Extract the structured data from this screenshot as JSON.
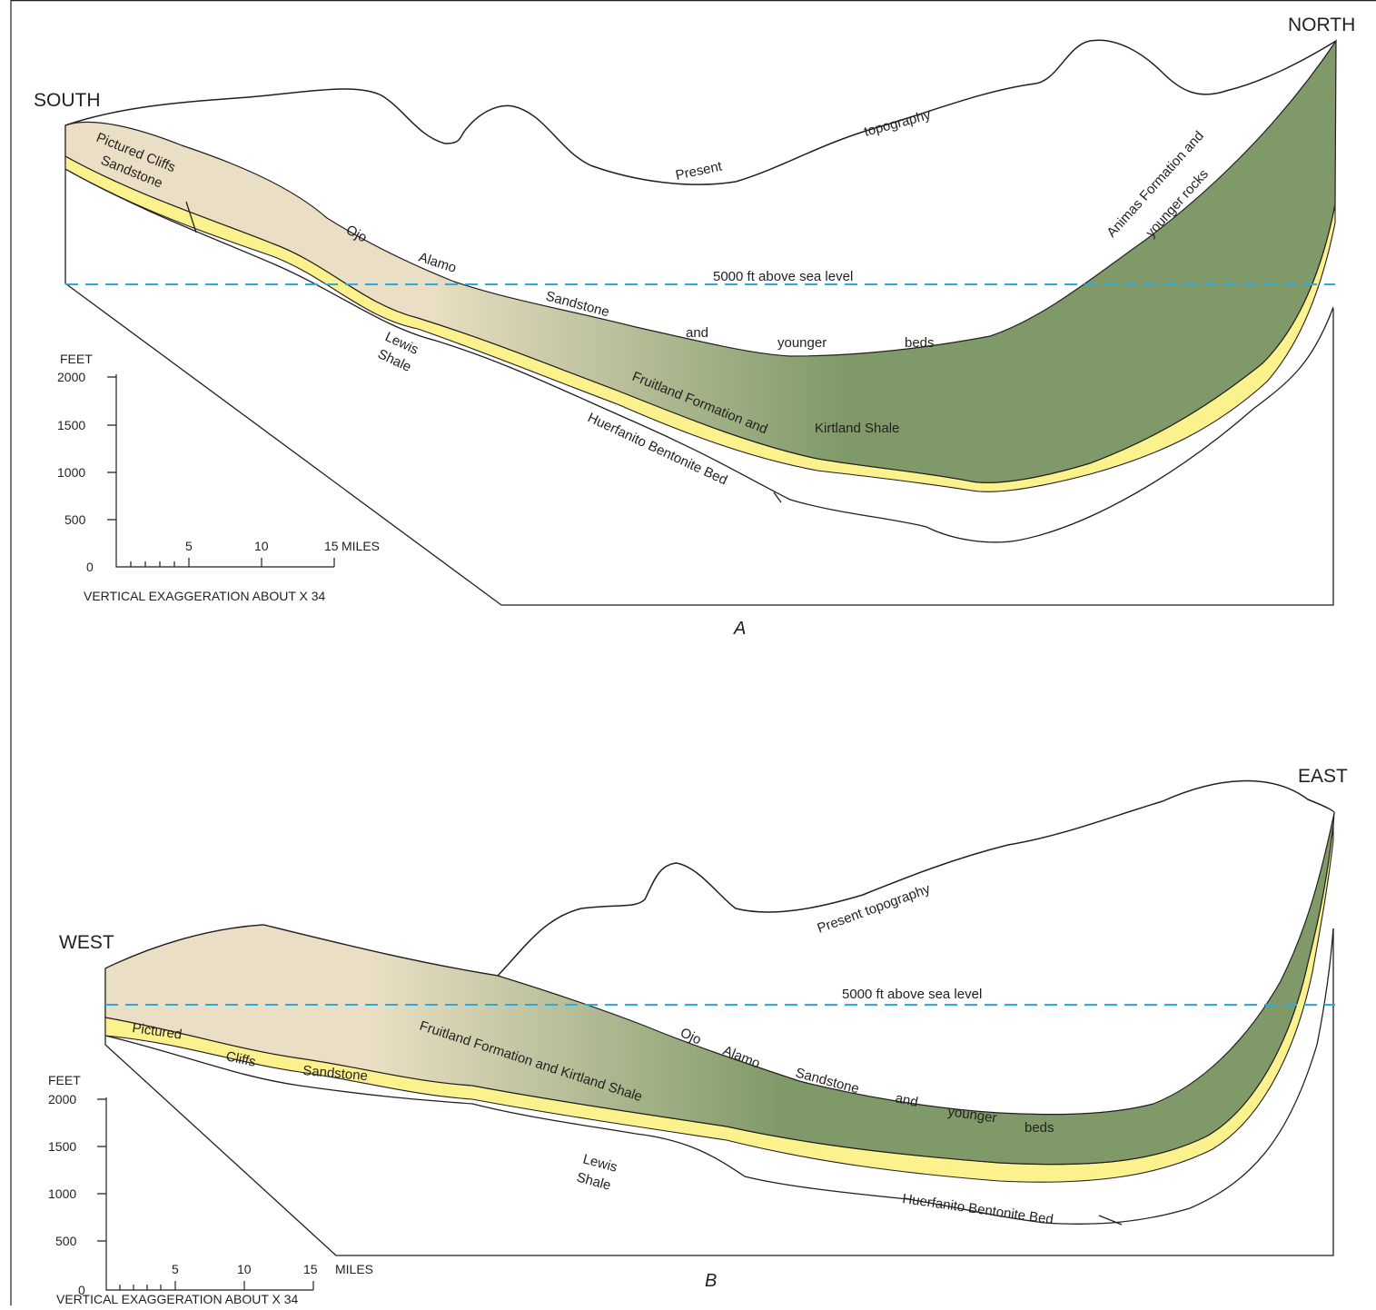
{
  "colors": {
    "ojo_alamo_sandstone": "#eadfc4",
    "animas_formation": "#7f9a68",
    "pictured_cliffs_sandstone": "#fbf28e",
    "orange_layer": "#f1c98d",
    "sea_level_line": "#29abe2",
    "outline": "#231f20"
  },
  "section_a": {
    "caption": "A",
    "left_direction": "SOUTH",
    "right_direction": "NORTH",
    "sea_level_label": "5000 ft above sea level",
    "topography_words": [
      "Present",
      "topography"
    ],
    "ojo_alamo_words": [
      "Ojo",
      "Alamo",
      "Sandstone",
      "and",
      "younger",
      "beds"
    ],
    "animas_label": [
      "Animas Formation and",
      "younger rocks"
    ],
    "pictured_cliffs_label": [
      "Pictured Cliffs",
      "Sandstone"
    ],
    "lewis_shale_label": [
      "Lewis",
      "Shale"
    ],
    "fruitland_label": "Fruitland Formation and",
    "kirtland_label": "Kirtland Shale",
    "huerfanito_label": "Huerfanito Bentonite Bed",
    "scale": {
      "vertical_unit": "FEET",
      "vertical_ticks": [
        "2000",
        "1500",
        "1000",
        "500",
        "0"
      ],
      "horizontal_ticks": [
        "5",
        "10",
        "15"
      ],
      "horizontal_unit": "MILES",
      "exaggeration": "VERTICAL EXAGGERATION ABOUT X 34"
    }
  },
  "section_b": {
    "caption": "B",
    "left_direction": "WEST",
    "right_direction": "EAST",
    "sea_level_label": "5000 ft above sea level",
    "topography_label": "Present topography",
    "pictured_cliffs_words": [
      "Pictured",
      "Cliffs",
      "Sandstone"
    ],
    "fruitland_label": "Fruitland Formation and Kirtland Shale",
    "ojo_alamo_words": [
      "Ojo",
      "Alamo",
      "Sandstone",
      "and",
      "younger",
      "beds"
    ],
    "lewis_shale_label": [
      "Lewis",
      "Shale"
    ],
    "huerfanito_label": "Huerfanito Bentonite Bed",
    "scale": {
      "vertical_unit": "FEET",
      "vertical_ticks": [
        "2000",
        "1500",
        "1000",
        "500",
        "0"
      ],
      "horizontal_ticks": [
        "5",
        "10",
        "15"
      ],
      "horizontal_unit": "MILES",
      "exaggeration": "VERTICAL EXAGGERATION ABOUT X 34"
    }
  }
}
